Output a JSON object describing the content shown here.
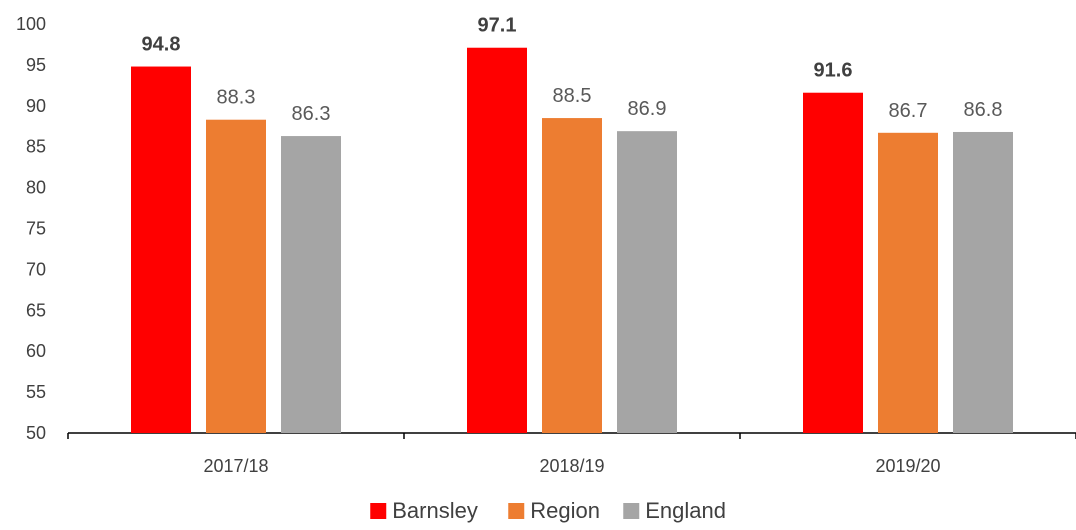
{
  "chart_data": {
    "type": "bar",
    "categories": [
      "2017/18",
      "2018/19",
      "2019/20"
    ],
    "series": [
      {
        "name": "Barnsley",
        "values": [
          94.8,
          97.1,
          91.6
        ],
        "color": "#ff0000",
        "label_bold": true
      },
      {
        "name": "Region",
        "values": [
          88.3,
          88.5,
          86.7
        ],
        "color": "#ed7d31",
        "label_bold": false
      },
      {
        "name": "England",
        "values": [
          86.3,
          86.9,
          86.8
        ],
        "color": "#a5a5a5",
        "label_bold": false
      }
    ],
    "y_ticks": [
      "50",
      "55",
      "60",
      "65",
      "70",
      "75",
      "80",
      "85",
      "90",
      "95",
      "100"
    ],
    "ylim": [
      50,
      100
    ],
    "grid": false,
    "legend_position": "bottom"
  }
}
